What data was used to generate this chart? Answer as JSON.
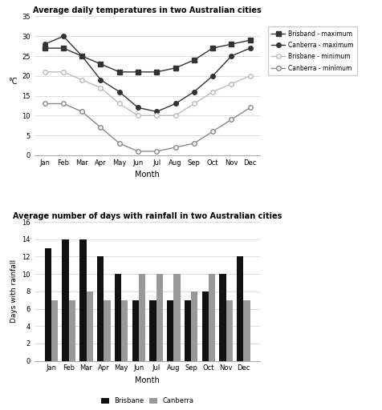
{
  "months": [
    "Jan",
    "Feb",
    "Mar",
    "Apr",
    "May",
    "Jun",
    "Jul",
    "Aug",
    "Sep",
    "Oct",
    "Nov",
    "Dec"
  ],
  "brisbane_max": [
    27,
    27,
    25,
    23,
    21,
    21,
    21,
    22,
    24,
    27,
    28,
    29
  ],
  "canberra_max": [
    28,
    30,
    25,
    19,
    16,
    12,
    11,
    13,
    16,
    20,
    25,
    27
  ],
  "brisbane_min": [
    21,
    21,
    19,
    17,
    13,
    10,
    10,
    10,
    13,
    16,
    18,
    20
  ],
  "canberra_min": [
    13,
    13,
    11,
    7,
    3,
    1,
    1,
    2,
    3,
    6,
    9,
    12
  ],
  "line_title": "Average daily temperatures in two Australian cities",
  "line_ylabel": "°C",
  "line_xlabel": "Month",
  "line_ylim": [
    0,
    35
  ],
  "line_yticks": [
    0,
    5,
    10,
    15,
    20,
    25,
    30,
    35
  ],
  "bar_brisbane": [
    13,
    14,
    14,
    12,
    10,
    7,
    7,
    7,
    7,
    8,
    10,
    12
  ],
  "bar_canberra": [
    7,
    7,
    8,
    7,
    7,
    10,
    10,
    10,
    8,
    10,
    7,
    7
  ],
  "bar_title": "Average number of days with rainfall in two Australian cities",
  "bar_ylabel": "Days with rainfall",
  "bar_xlabel": "Month",
  "bar_ylim": [
    0,
    16
  ],
  "bar_yticks": [
    0,
    2,
    4,
    6,
    8,
    10,
    12,
    14,
    16
  ],
  "bar_brisbane_color": "#111111",
  "bar_canberra_color": "#999999",
  "color_dark": "#333333",
  "color_mid": "#888888",
  "color_light": "#bbbbbb"
}
